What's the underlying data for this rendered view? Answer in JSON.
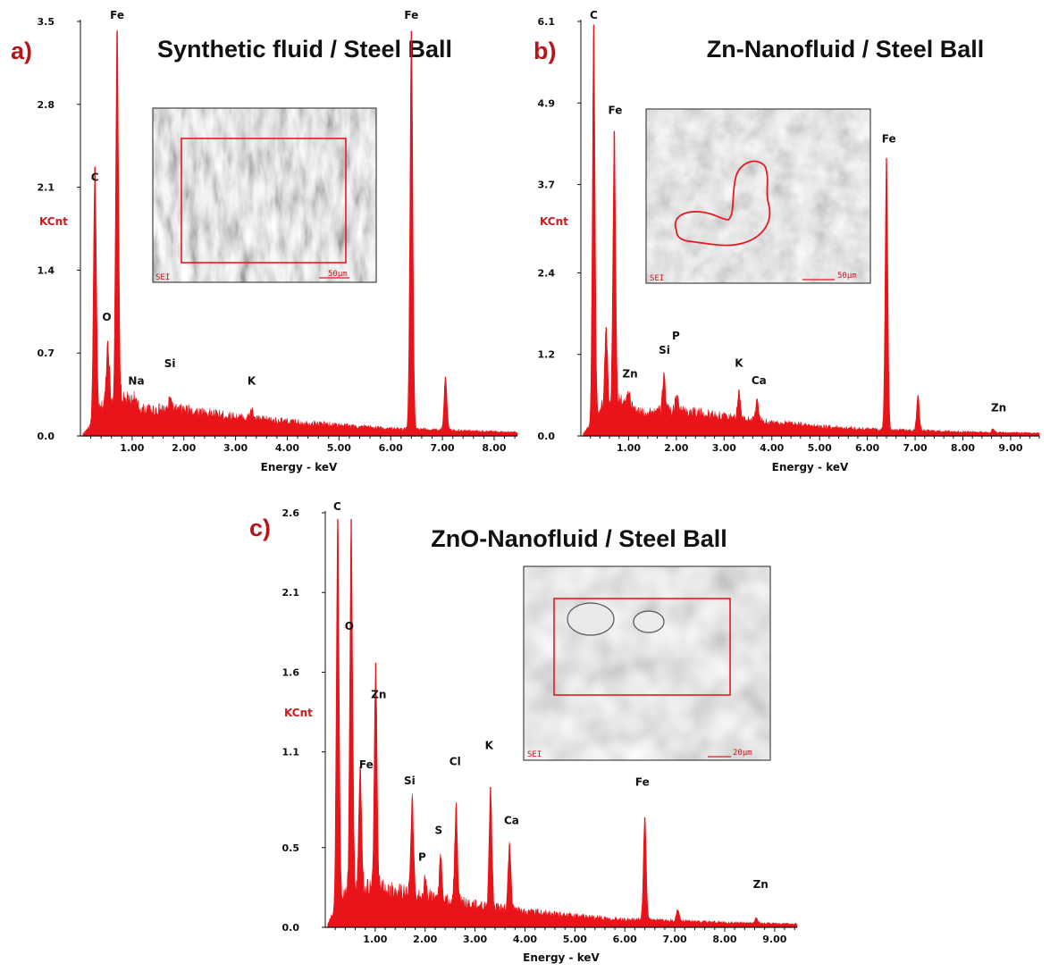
{
  "colors": {
    "spectrum": "#e8141a",
    "panel_letter": "#b5161b",
    "unit": "#d11a1a",
    "roi": "#e31b23"
  },
  "chart_data": [
    {
      "id": "a",
      "type": "area",
      "panel_letter": "a)",
      "title": "Synthetic fluid / Steel Ball",
      "xlabel": "Energy - keV",
      "ylabel": "KCnt",
      "xlim": [
        0,
        8.45
      ],
      "ylim": [
        0,
        3.5
      ],
      "xticks": [
        1,
        2,
        3,
        4,
        5,
        6,
        7,
        8
      ],
      "xtick_labels": [
        "1.00",
        "2.00",
        "3.00",
        "4.00",
        "5.00",
        "6.00",
        "7.00",
        "8.00"
      ],
      "yticks": [
        0,
        0.7,
        1.4,
        2.1,
        2.8,
        3.5
      ],
      "ytick_labels": [
        "0.0",
        "0.7",
        "1.4",
        "2.1",
        "2.8",
        "3.5"
      ],
      "grid": false,
      "background": [
        {
          "x": 0.05,
          "y": 0.02
        },
        {
          "x": 0.15,
          "y": 0.06
        },
        {
          "x": 0.5,
          "y": 0.3
        },
        {
          "x": 0.9,
          "y": 0.3
        },
        {
          "x": 1.2,
          "y": 0.22
        },
        {
          "x": 2.0,
          "y": 0.22
        },
        {
          "x": 3.0,
          "y": 0.16
        },
        {
          "x": 4.0,
          "y": 0.12
        },
        {
          "x": 5.0,
          "y": 0.09
        },
        {
          "x": 6.0,
          "y": 0.06
        },
        {
          "x": 7.0,
          "y": 0.05
        },
        {
          "x": 8.45,
          "y": 0.03
        }
      ],
      "peaks": [
        {
          "label": "C",
          "x": 0.28,
          "y": 2.27
        },
        {
          "label": "O",
          "x": 0.53,
          "y": 0.8
        },
        {
          "label": "",
          "x": 0.71,
          "y": 3.42
        },
        {
          "label": "Na",
          "x": 1.04,
          "y": 0.33
        },
        {
          "label": "Si",
          "x": 1.74,
          "y": 0.32
        },
        {
          "label": "K",
          "x": 3.31,
          "y": 0.22
        },
        {
          "label": "Fe",
          "x": 6.4,
          "y": 3.42
        },
        {
          "label": "",
          "x": 7.06,
          "y": 0.5
        }
      ],
      "annotations": [
        {
          "text": "Fe",
          "x": 0.71,
          "y": 3.5
        },
        {
          "text": "C",
          "x": 0.28,
          "y": 2.13
        },
        {
          "text": "O",
          "x": 0.51,
          "y": 0.95
        },
        {
          "text": "Na",
          "x": 1.08,
          "y": 0.41
        },
        {
          "text": "Si",
          "x": 1.73,
          "y": 0.56
        },
        {
          "text": "K",
          "x": 3.31,
          "y": 0.41
        },
        {
          "text": "Fe",
          "x": 6.4,
          "y": 3.5
        }
      ],
      "inset": {
        "label": "SEI",
        "scale_bar": "50μm",
        "roi": "rectangle"
      }
    },
    {
      "id": "b",
      "type": "area",
      "panel_letter": "b)",
      "title": "Zn-Nanofluid / Steel Ball",
      "xlabel": "Energy - keV",
      "ylabel": "KCnt",
      "xlim": [
        0,
        9.6
      ],
      "ylim": [
        0,
        6.1
      ],
      "xticks": [
        1,
        2,
        3,
        4,
        5,
        6,
        7,
        8,
        9
      ],
      "xtick_labels": [
        "1.00",
        "2.00",
        "3.00",
        "4.00",
        "5.00",
        "6.00",
        "7.00",
        "8.00",
        "9.00"
      ],
      "yticks": [
        0,
        1.2,
        2.4,
        3.7,
        4.9,
        6.1
      ],
      "ytick_labels": [
        "0.0",
        "1.2",
        "2.4",
        "3.7",
        "4.9",
        "6.1"
      ],
      "grid": false,
      "background": [
        {
          "x": 0.05,
          "y": 0.04
        },
        {
          "x": 0.15,
          "y": 0.12
        },
        {
          "x": 0.5,
          "y": 0.5
        },
        {
          "x": 0.9,
          "y": 0.5
        },
        {
          "x": 1.2,
          "y": 0.34
        },
        {
          "x": 2.0,
          "y": 0.38
        },
        {
          "x": 3.0,
          "y": 0.28
        },
        {
          "x": 4.0,
          "y": 0.2
        },
        {
          "x": 5.0,
          "y": 0.14
        },
        {
          "x": 6.0,
          "y": 0.1
        },
        {
          "x": 7.0,
          "y": 0.08
        },
        {
          "x": 8.0,
          "y": 0.06
        },
        {
          "x": 9.6,
          "y": 0.04
        }
      ],
      "peaks": [
        {
          "label": "C",
          "x": 0.27,
          "y": 6.05
        },
        {
          "label": "",
          "x": 0.53,
          "y": 1.6
        },
        {
          "label": "Fe",
          "x": 0.7,
          "y": 4.49
        },
        {
          "label": "Zn",
          "x": 1.01,
          "y": 0.62
        },
        {
          "label": "Si",
          "x": 1.74,
          "y": 0.93
        },
        {
          "label": "P",
          "x": 2.01,
          "y": 0.6
        },
        {
          "label": "K",
          "x": 3.31,
          "y": 0.67
        },
        {
          "label": "Ca",
          "x": 3.69,
          "y": 0.55
        },
        {
          "label": "Fe",
          "x": 6.4,
          "y": 4.09
        },
        {
          "label": "",
          "x": 7.06,
          "y": 0.6
        },
        {
          "label": "Zn",
          "x": 8.63,
          "y": 0.1
        }
      ],
      "annotations": [
        {
          "text": "C",
          "x": 0.27,
          "y": 6.1
        },
        {
          "text": "Fe",
          "x": 0.72,
          "y": 4.7
        },
        {
          "text": "Zn",
          "x": 1.03,
          "y": 0.82
        },
        {
          "text": "Si",
          "x": 1.75,
          "y": 1.17
        },
        {
          "text": "P",
          "x": 1.99,
          "y": 1.38
        },
        {
          "text": "K",
          "x": 3.31,
          "y": 0.98
        },
        {
          "text": "Ca",
          "x": 3.73,
          "y": 0.72
        },
        {
          "text": "Fe",
          "x": 6.45,
          "y": 4.28
        },
        {
          "text": "Zn",
          "x": 8.75,
          "y": 0.32
        }
      ],
      "inset": {
        "label": "SEI",
        "scale_bar": "50μm",
        "roi": "freehand outline"
      }
    },
    {
      "id": "c",
      "type": "area",
      "panel_letter": "c)",
      "title": "ZnO-Nanofluid / Steel Ball",
      "xlabel": "Energy - keV",
      "ylabel": "KCnt",
      "xlim": [
        0,
        9.45
      ],
      "ylim": [
        0,
        2.6
      ],
      "xticks": [
        1,
        2,
        3,
        4,
        5,
        6,
        7,
        8,
        9
      ],
      "xtick_labels": [
        "1.00",
        "2.00",
        "3.00",
        "4.00",
        "5.00",
        "6.00",
        "7.00",
        "8.00",
        "9.00"
      ],
      "yticks": [
        0,
        0.5,
        1.1,
        1.6,
        2.1,
        2.6
      ],
      "ytick_labels": [
        "0.0",
        "0.5",
        "1.1",
        "1.6",
        "2.1",
        "2.6"
      ],
      "grid": false,
      "background": [
        {
          "x": 0.05,
          "y": 0.02
        },
        {
          "x": 0.15,
          "y": 0.08
        },
        {
          "x": 0.5,
          "y": 0.26
        },
        {
          "x": 0.9,
          "y": 0.24
        },
        {
          "x": 1.2,
          "y": 0.24
        },
        {
          "x": 2.0,
          "y": 0.2
        },
        {
          "x": 3.0,
          "y": 0.14
        },
        {
          "x": 4.0,
          "y": 0.1
        },
        {
          "x": 5.0,
          "y": 0.07
        },
        {
          "x": 6.0,
          "y": 0.05
        },
        {
          "x": 7.0,
          "y": 0.04
        },
        {
          "x": 8.0,
          "y": 0.03
        },
        {
          "x": 9.45,
          "y": 0.02
        }
      ],
      "peaks": [
        {
          "label": "C",
          "x": 0.25,
          "y": 2.56
        },
        {
          "label": "O",
          "x": 0.52,
          "y": 2.56
        },
        {
          "label": "Fe",
          "x": 0.7,
          "y": 1.01
        },
        {
          "label": "Zn",
          "x": 1.01,
          "y": 1.66
        },
        {
          "label": "Si",
          "x": 1.74,
          "y": 0.8
        },
        {
          "label": "P",
          "x": 2.01,
          "y": 0.3
        },
        {
          "label": "S",
          "x": 2.31,
          "y": 0.43
        },
        {
          "label": "Cl",
          "x": 2.62,
          "y": 0.75
        },
        {
          "label": "K",
          "x": 3.31,
          "y": 0.88
        },
        {
          "label": "Ca",
          "x": 3.69,
          "y": 0.52
        },
        {
          "label": "Fe",
          "x": 6.4,
          "y": 0.69
        },
        {
          "label": "",
          "x": 7.06,
          "y": 0.11
        },
        {
          "label": "Zn",
          "x": 8.63,
          "y": 0.06
        }
      ],
      "annotations": [
        {
          "text": "C",
          "x": 0.24,
          "y": 2.6
        },
        {
          "text": "O",
          "x": 0.48,
          "y": 1.85
        },
        {
          "text": "Zn",
          "x": 1.07,
          "y": 1.42
        },
        {
          "text": "Fe",
          "x": 0.82,
          "y": 0.98
        },
        {
          "text": "Si",
          "x": 1.69,
          "y": 0.88
        },
        {
          "text": "P",
          "x": 1.94,
          "y": 0.4
        },
        {
          "text": "S",
          "x": 2.27,
          "y": 0.57
        },
        {
          "text": "Cl",
          "x": 2.6,
          "y": 1.0
        },
        {
          "text": "K",
          "x": 3.28,
          "y": 1.1
        },
        {
          "text": "Ca",
          "x": 3.73,
          "y": 0.63
        },
        {
          "text": "Fe",
          "x": 6.35,
          "y": 0.87
        },
        {
          "text": "Zn",
          "x": 8.72,
          "y": 0.23
        }
      ],
      "inset": {
        "label": "SEI",
        "scale_bar": "20μm",
        "roi": "rectangle"
      }
    }
  ]
}
